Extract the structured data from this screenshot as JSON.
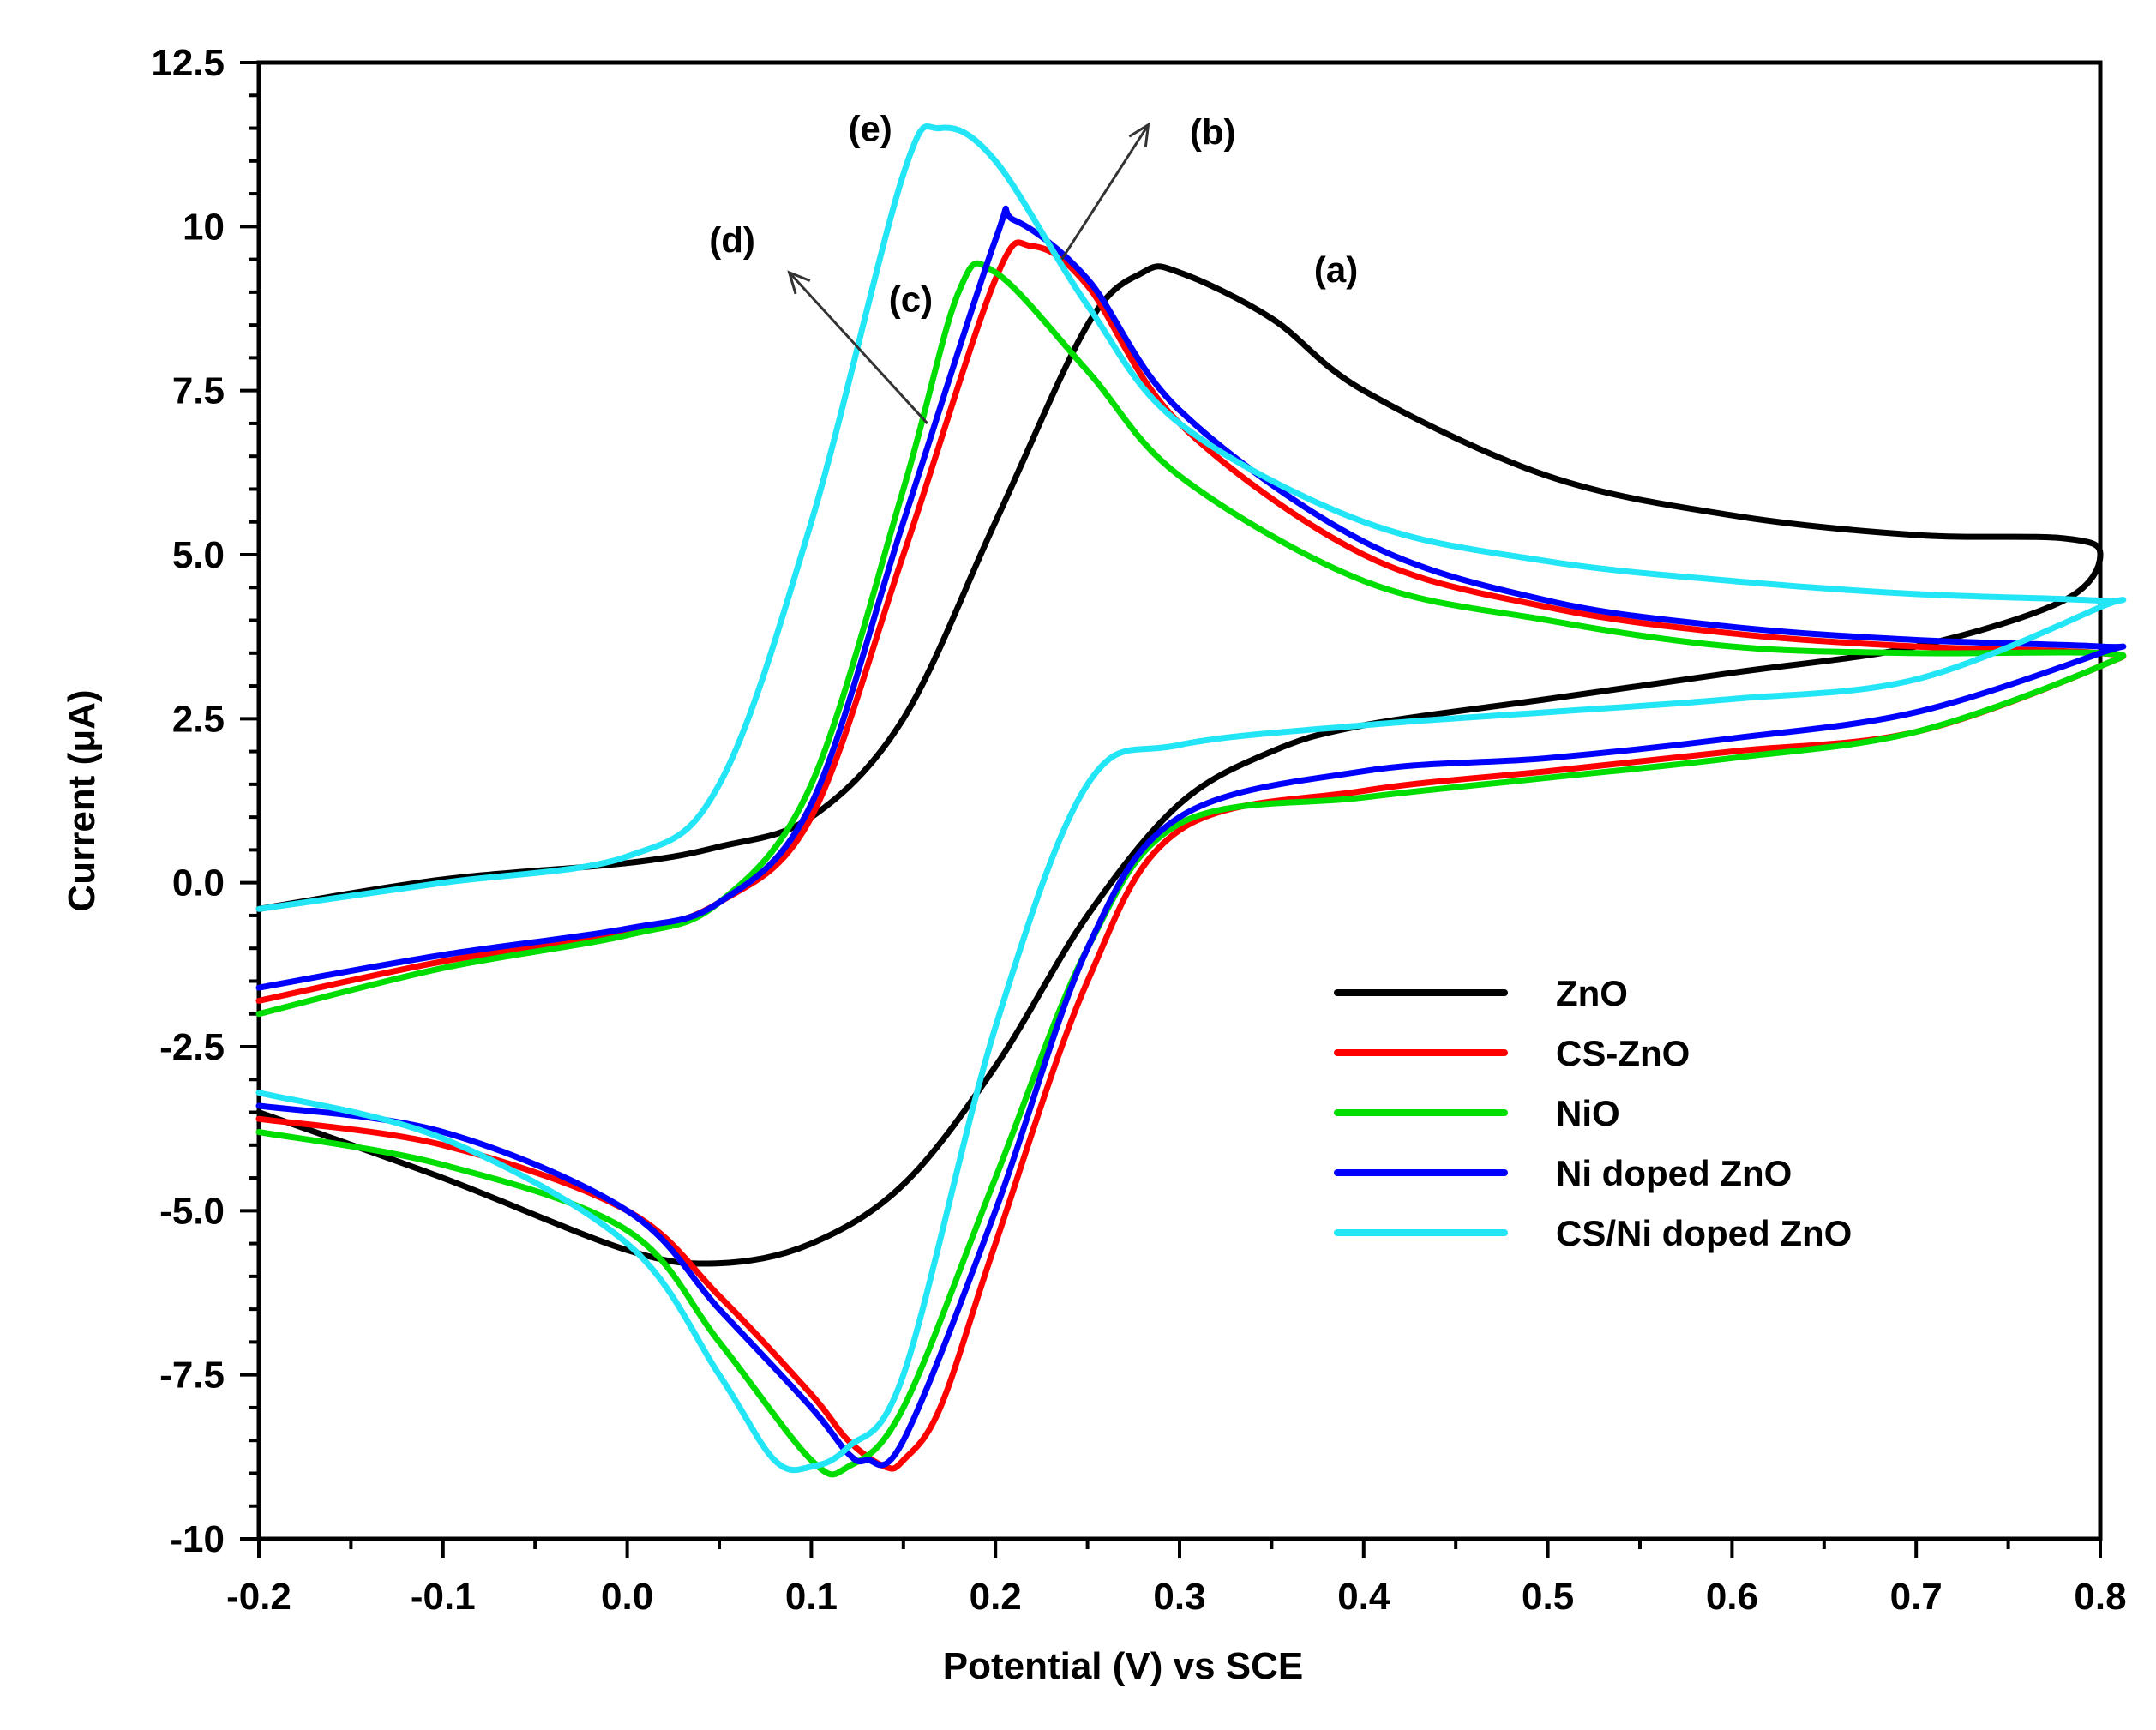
{
  "chart_data": {
    "type": "line",
    "title": "",
    "xlabel": "Potential (V)  vs SCE",
    "ylabel": "Current (μA)",
    "xlim": [
      -0.2,
      0.8
    ],
    "ylim": [
      -10,
      12.5
    ],
    "x_ticks": [
      -0.2,
      -0.1,
      0.0,
      0.1,
      0.2,
      0.3,
      0.4,
      0.5,
      0.6,
      0.7,
      0.8
    ],
    "x_tick_labels": [
      "-0.2",
      "-0.1",
      "0.0",
      "0.1",
      "0.2",
      "0.3",
      "0.4",
      "0.5",
      "0.6",
      "0.7",
      "0.8"
    ],
    "y_ticks": [
      -10,
      -7.5,
      -5,
      -2.5,
      0,
      2.5,
      5,
      7.5,
      10,
      12.5
    ],
    "y_tick_labels": [
      "-10",
      "-7.5",
      "-5.0",
      "-2.5",
      "0.0",
      "2.5",
      "5.0",
      "7.5",
      "10",
      "12.5"
    ],
    "grid": false,
    "legend_position": "bottom-right",
    "series": [
      {
        "name": "ZnO",
        "color": "#000000",
        "x": [
          -0.2,
          -0.1,
          0.0,
          0.05,
          0.1,
          0.15,
          0.2,
          0.25,
          0.28,
          0.3,
          0.35,
          0.4,
          0.5,
          0.6,
          0.7,
          0.78,
          0.8,
          0.78,
          0.7,
          0.6,
          0.5,
          0.4,
          0.35,
          0.3,
          0.25,
          0.2,
          0.15,
          0.1,
          0.05,
          0.0,
          -0.1,
          -0.2
        ],
        "y": [
          -0.4,
          0.05,
          0.3,
          0.55,
          1.0,
          2.5,
          5.5,
          8.5,
          9.3,
          9.3,
          8.6,
          7.5,
          6.2,
          5.6,
          5.3,
          5.25,
          5.0,
          4.3,
          3.6,
          3.2,
          2.8,
          2.4,
          2.0,
          1.2,
          -0.5,
          -2.8,
          -4.6,
          -5.5,
          -5.8,
          -5.6,
          -4.5,
          -3.5
        ]
      },
      {
        "name": "CS-ZnO",
        "color": "#ff0000",
        "x": [
          -0.2,
          -0.1,
          0.0,
          0.05,
          0.1,
          0.15,
          0.2,
          0.22,
          0.25,
          0.3,
          0.4,
          0.5,
          0.6,
          0.7,
          0.8,
          0.8,
          0.7,
          0.6,
          0.5,
          0.4,
          0.3,
          0.25,
          0.2,
          0.17,
          0.15,
          0.14,
          0.12,
          0.1,
          0.05,
          0.0,
          -0.1,
          -0.2
        ],
        "y": [
          -1.8,
          -1.2,
          -0.75,
          -0.3,
          1.0,
          5.0,
          9.2,
          9.7,
          9.1,
          7.0,
          5.0,
          4.2,
          3.8,
          3.6,
          3.5,
          3.3,
          2.3,
          2.0,
          1.7,
          1.4,
          0.8,
          -1.5,
          -5.5,
          -8.0,
          -8.8,
          -8.9,
          -8.5,
          -7.8,
          -6.3,
          -5.0,
          -4.0,
          -3.6
        ]
      },
      {
        "name": "NiO",
        "color": "#00dd00",
        "x": [
          -0.2,
          -0.1,
          0.0,
          0.05,
          0.1,
          0.15,
          0.18,
          0.2,
          0.25,
          0.3,
          0.4,
          0.5,
          0.6,
          0.7,
          0.8,
          0.8,
          0.7,
          0.6,
          0.5,
          0.4,
          0.3,
          0.25,
          0.2,
          0.15,
          0.12,
          0.1,
          0.05,
          0.0,
          -0.1,
          -0.2
        ],
        "y": [
          -2.0,
          -1.3,
          -0.8,
          -0.3,
          1.5,
          6.0,
          9.0,
          9.3,
          7.8,
          6.2,
          4.6,
          4.0,
          3.6,
          3.5,
          3.5,
          3.3,
          2.3,
          1.9,
          1.6,
          1.3,
          0.9,
          -1.0,
          -4.5,
          -8.0,
          -8.9,
          -8.8,
          -7.0,
          -5.3,
          -4.3,
          -3.8
        ]
      },
      {
        "name": "Ni doped ZnO",
        "color": "#0000ff",
        "x": [
          -0.2,
          -0.1,
          0.0,
          0.05,
          0.1,
          0.15,
          0.2,
          0.21,
          0.25,
          0.3,
          0.4,
          0.5,
          0.6,
          0.7,
          0.8,
          0.8,
          0.7,
          0.6,
          0.5,
          0.4,
          0.3,
          0.25,
          0.2,
          0.15,
          0.13,
          0.12,
          0.1,
          0.05,
          0.0,
          -0.1,
          -0.2
        ],
        "y": [
          -1.6,
          -1.1,
          -0.7,
          -0.3,
          1.2,
          5.5,
          9.8,
          10.1,
          9.2,
          7.2,
          5.2,
          4.3,
          3.9,
          3.7,
          3.6,
          3.5,
          2.6,
          2.2,
          1.9,
          1.7,
          1.0,
          -1.0,
          -5.0,
          -8.5,
          -8.8,
          -8.7,
          -8.0,
          -6.5,
          -5.0,
          -3.8,
          -3.4
        ]
      },
      {
        "name": "CS/Ni doped ZnO",
        "color": "#22e5f5",
        "x": [
          -0.2,
          -0.1,
          0.0,
          0.05,
          0.1,
          0.15,
          0.17,
          0.2,
          0.25,
          0.3,
          0.4,
          0.5,
          0.6,
          0.7,
          0.8,
          0.8,
          0.7,
          0.6,
          0.5,
          0.4,
          0.3,
          0.25,
          0.2,
          0.15,
          0.12,
          0.1,
          0.08,
          0.05,
          0.0,
          -0.1,
          -0.2
        ],
        "y": [
          -0.4,
          0.0,
          0.4,
          1.5,
          5.5,
          10.8,
          11.5,
          11.0,
          8.8,
          7.0,
          5.5,
          4.9,
          4.6,
          4.4,
          4.3,
          4.2,
          3.1,
          2.8,
          2.6,
          2.4,
          2.1,
          1.5,
          -2.2,
          -7.5,
          -8.6,
          -8.9,
          -8.8,
          -7.5,
          -5.5,
          -3.9,
          -3.2
        ]
      }
    ],
    "annotations": [
      {
        "label": "(a)",
        "x": 0.385,
        "y": 9.35
      },
      {
        "label": "(b)",
        "x": 0.318,
        "y": 11.45
      },
      {
        "label": "(c)",
        "x": 0.154,
        "y": 8.9
      },
      {
        "label": "(d)",
        "x": 0.057,
        "y": 9.8
      },
      {
        "label": "(e)",
        "x": 0.132,
        "y": 11.5
      }
    ],
    "arrows": [
      {
        "from_x": 0.236,
        "from_y": 9.5,
        "to_x": 0.283,
        "to_y": 11.55
      },
      {
        "from_x": 0.163,
        "from_y": 7.0,
        "to_x": 0.088,
        "to_y": 9.3
      }
    ]
  }
}
